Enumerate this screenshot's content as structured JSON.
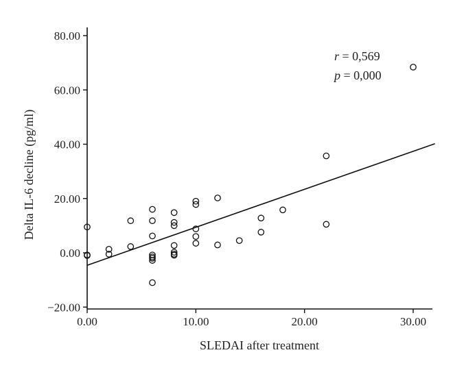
{
  "chart_data": {
    "type": "scatter",
    "title": "",
    "xlabel": "SLEDAI after treatment",
    "ylabel": "Delta IL-6 decline (pg/ml)",
    "xlim": [
      0,
      32
    ],
    "ylim": [
      -20,
      85
    ],
    "x_ticks": [
      0,
      10,
      20,
      30
    ],
    "x_tick_labels": [
      "0.00",
      "10.00",
      "20.00",
      "30.00"
    ],
    "y_ticks": [
      -20,
      0,
      20,
      40,
      60,
      80
    ],
    "y_tick_labels": [
      "−20.00",
      "0.00",
      "20.00",
      "40.00",
      "60.00",
      "80.00"
    ],
    "grid": false,
    "marker": "open-circle",
    "series": [
      {
        "x": [
          0,
          0,
          0,
          2,
          2,
          4,
          4,
          6,
          6,
          6,
          6,
          6,
          6,
          6,
          6,
          8,
          8,
          8,
          8,
          8,
          8,
          8,
          10,
          10,
          10,
          10,
          10,
          12,
          12,
          14,
          16,
          16,
          18,
          22,
          22,
          30
        ],
        "y": [
          9.5,
          -0.8,
          -1.0,
          1.3,
          -0.5,
          11.8,
          2.3,
          16.0,
          11.8,
          6.2,
          -0.8,
          -2.0,
          -2.8,
          -11.0,
          -1.5,
          14.8,
          11.2,
          10.0,
          2.7,
          0.2,
          -0.5,
          -0.9,
          19.0,
          17.8,
          8.8,
          6.0,
          3.5,
          20.2,
          2.9,
          4.5,
          12.8,
          7.6,
          15.8,
          35.7,
          10.5,
          68.4
        ]
      }
    ],
    "regression": {
      "intercept": -4.6,
      "slope": 1.4,
      "x_range": [
        0,
        32
      ]
    },
    "annotations": [
      {
        "name": "r",
        "symbol": "r",
        "value": "0,569"
      },
      {
        "name": "p",
        "symbol": "p",
        "value": "0,000"
      }
    ]
  }
}
